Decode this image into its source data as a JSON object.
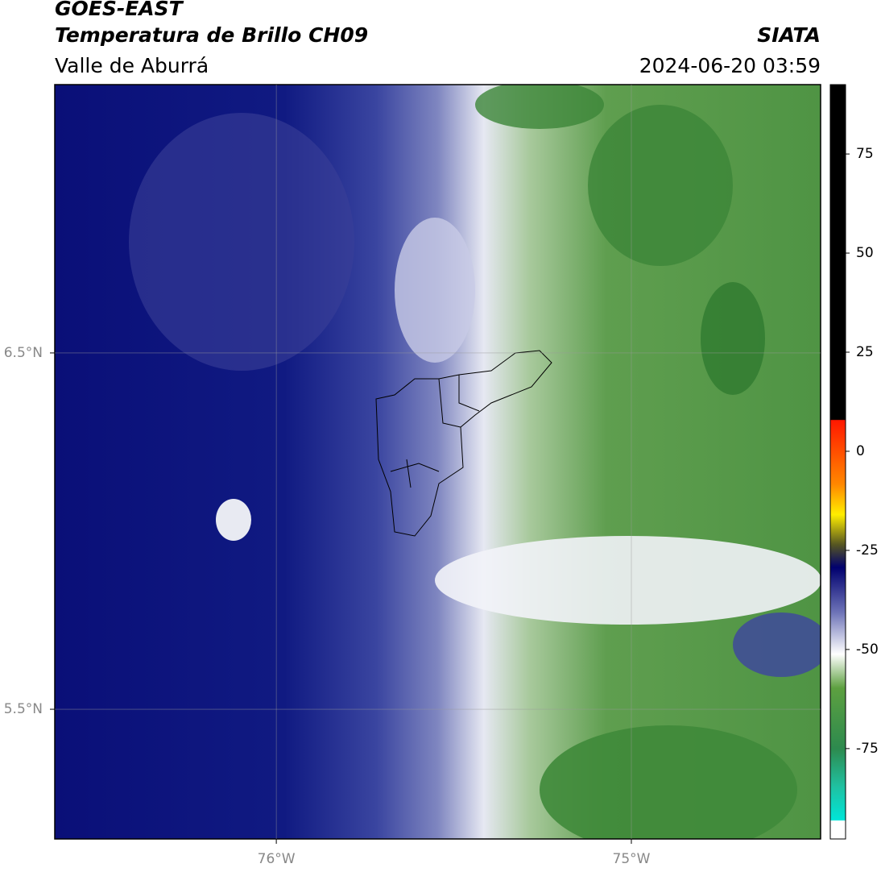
{
  "header": {
    "title": "GOES-EAST",
    "subtitle": "Temperatura de Brillo CH09",
    "region": "Valle de Aburrá",
    "source": "SIATA",
    "datetime": "2024-06-20 03:59"
  },
  "map": {
    "xlim": [
      -76.624,
      -74.467
    ],
    "ylim": [
      5.136,
      7.253
    ],
    "xticks": [
      {
        "value": -76,
        "label": "76°W"
      },
      {
        "value": -75,
        "label": "75°W"
      }
    ],
    "yticks": [
      {
        "value": 6.5,
        "label": "6.5°N"
      },
      {
        "value": 5.5,
        "label": "5.5°N"
      }
    ]
  },
  "colorbar": {
    "lim": [
      -97.8,
      92.5
    ],
    "ticks": [
      75,
      50,
      25,
      0,
      -25,
      -50,
      -75
    ]
  }
}
